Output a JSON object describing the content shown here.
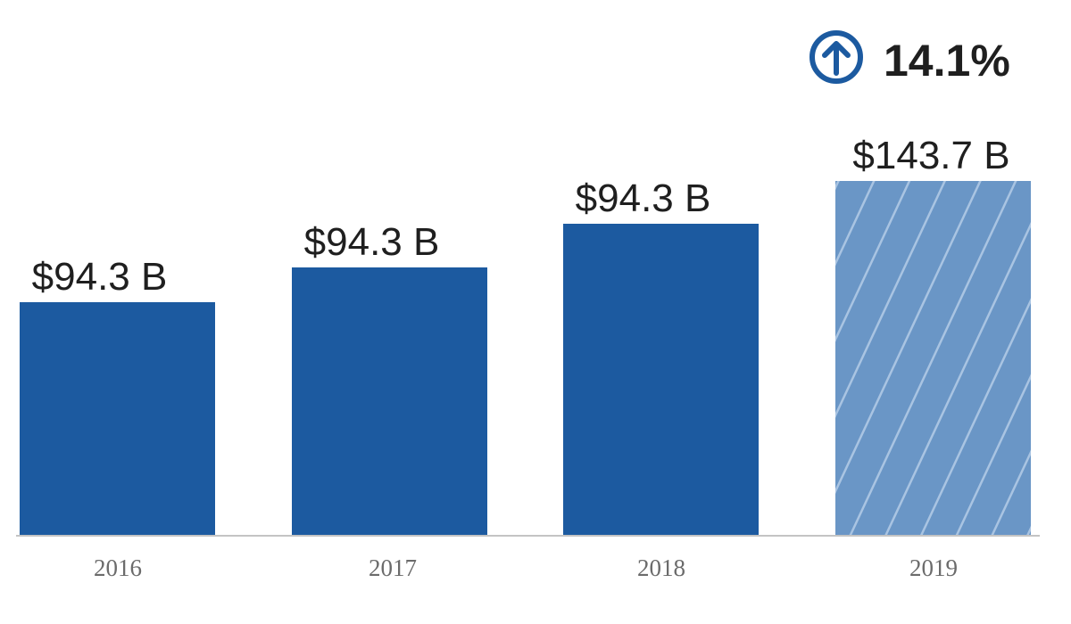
{
  "colors": {
    "bar_actual": "#1c5aa0",
    "bar_forecast": "#6a96c6",
    "stripe": "#a9c4e2",
    "baseline": "#c4c4c4",
    "accent": "#1c5aa0"
  },
  "growth": {
    "icon": "arrow-up-circle-icon",
    "value": "14.1%"
  },
  "chart_data": {
    "type": "bar",
    "categories": [
      "2016",
      "2017",
      "2018",
      "2019"
    ],
    "values": [
      94.3,
      94.3,
      94.3,
      143.7
    ],
    "data_labels": [
      "$94.3 B",
      "$94.3 B",
      "$94.3 B",
      "$143.7 B"
    ],
    "forecast": [
      false,
      false,
      false,
      true
    ],
    "title": "",
    "xlabel": "",
    "ylabel": "",
    "axis_visible": false,
    "grid": false,
    "legend": "none"
  }
}
